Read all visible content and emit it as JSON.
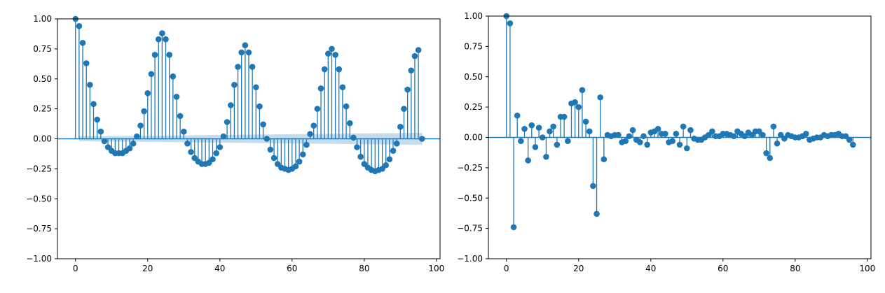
{
  "chart_data": [
    {
      "type": "stem",
      "title": "",
      "xlabel": "",
      "ylabel": "",
      "xlim": [
        -5,
        101
      ],
      "ylim": [
        -1.0,
        1.0
      ],
      "xticks": [
        0,
        20,
        40,
        60,
        80,
        100
      ],
      "yticks": [
        -1.0,
        -0.75,
        -0.5,
        -0.25,
        0.0,
        0.25,
        0.5,
        0.75,
        1.0
      ],
      "ytick_labels": [
        "−1.00",
        "−0.75",
        "−0.50",
        "−0.25",
        "0.00",
        "0.25",
        "0.50",
        "0.75",
        "1.00"
      ],
      "grid": false,
      "color": "#1f77b4",
      "confidence_band": {
        "color": "#1f77b4",
        "opacity": 0.25,
        "lower_start": -0.02,
        "lower_end": -0.05,
        "upper_start": 0.02,
        "upper_end": 0.05
      },
      "x": [
        0,
        1,
        2,
        3,
        4,
        5,
        6,
        7,
        8,
        9,
        10,
        11,
        12,
        13,
        14,
        15,
        16,
        17,
        18,
        19,
        20,
        21,
        22,
        23,
        24,
        25,
        26,
        27,
        28,
        29,
        30,
        31,
        32,
        33,
        34,
        35,
        36,
        37,
        38,
        39,
        40,
        41,
        42,
        43,
        44,
        45,
        46,
        47,
        48,
        49,
        50,
        51,
        52,
        53,
        54,
        55,
        56,
        57,
        58,
        59,
        60,
        61,
        62,
        63,
        64,
        65,
        66,
        67,
        68,
        69,
        70,
        71,
        72,
        73,
        74,
        75,
        76,
        77,
        78,
        79,
        80,
        81,
        82,
        83,
        84,
        85,
        86,
        87,
        88,
        89,
        90,
        91,
        92,
        93,
        94,
        95,
        96
      ],
      "values": [
        1.0,
        0.94,
        0.8,
        0.63,
        0.45,
        0.29,
        0.16,
        0.06,
        -0.02,
        -0.07,
        -0.1,
        -0.12,
        -0.12,
        -0.12,
        -0.1,
        -0.08,
        -0.04,
        0.02,
        0.11,
        0.23,
        0.38,
        0.54,
        0.7,
        0.83,
        0.88,
        0.83,
        0.7,
        0.52,
        0.35,
        0.19,
        0.06,
        -0.04,
        -0.11,
        -0.16,
        -0.19,
        -0.21,
        -0.21,
        -0.2,
        -0.17,
        -0.12,
        -0.07,
        0.02,
        0.14,
        0.28,
        0.45,
        0.6,
        0.72,
        0.78,
        0.72,
        0.6,
        0.43,
        0.27,
        0.12,
        0.0,
        -0.09,
        -0.16,
        -0.21,
        -0.24,
        -0.25,
        -0.26,
        -0.25,
        -0.23,
        -0.19,
        -0.13,
        -0.05,
        0.04,
        0.11,
        0.25,
        0.42,
        0.58,
        0.71,
        0.75,
        0.7,
        0.58,
        0.43,
        0.27,
        0.13,
        0.01,
        -0.07,
        -0.15,
        -0.21,
        -0.24,
        -0.26,
        -0.27,
        -0.26,
        -0.25,
        -0.22,
        -0.17,
        -0.1,
        -0.04,
        0.1,
        0.25,
        0.41,
        0.57,
        0.69,
        0.74,
        0.0
      ]
    },
    {
      "type": "stem",
      "title": "",
      "xlabel": "",
      "ylabel": "",
      "xlim": [
        -5,
        101
      ],
      "ylim": [
        -1.0,
        1.0
      ],
      "xticks": [
        0,
        20,
        40,
        60,
        80,
        100
      ],
      "yticks": [
        -1.0,
        -0.75,
        -0.5,
        -0.25,
        0.0,
        0.25,
        0.5,
        0.75,
        1.0
      ],
      "ytick_labels": [
        "−1.00",
        "−0.75",
        "−0.50",
        "−0.25",
        "0.00",
        "0.25",
        "0.50",
        "0.75",
        "1.00"
      ],
      "grid": false,
      "color": "#1f77b4",
      "x": [
        0,
        1,
        2,
        3,
        4,
        5,
        6,
        7,
        8,
        9,
        10,
        11,
        12,
        13,
        14,
        15,
        16,
        17,
        18,
        19,
        20,
        21,
        22,
        23,
        24,
        25,
        26,
        27,
        28,
        29,
        30,
        31,
        32,
        33,
        34,
        35,
        36,
        37,
        38,
        39,
        40,
        41,
        42,
        43,
        44,
        45,
        46,
        47,
        48,
        49,
        50,
        51,
        52,
        53,
        54,
        55,
        56,
        57,
        58,
        59,
        60,
        61,
        62,
        63,
        64,
        65,
        66,
        67,
        68,
        69,
        70,
        71,
        72,
        73,
        74,
        75,
        76,
        77,
        78,
        79,
        80,
        81,
        82,
        83,
        84,
        85,
        86,
        87,
        88,
        89,
        90,
        91,
        92,
        93,
        94,
        95,
        96
      ],
      "values": [
        1.0,
        0.94,
        -0.74,
        0.18,
        -0.03,
        0.07,
        -0.19,
        0.1,
        -0.08,
        0.08,
        0.0,
        -0.16,
        0.05,
        0.09,
        -0.06,
        0.17,
        0.17,
        -0.03,
        0.28,
        0.29,
        0.25,
        0.39,
        0.13,
        0.05,
        -0.4,
        -0.63,
        0.33,
        -0.18,
        0.02,
        0.01,
        0.02,
        0.02,
        -0.04,
        -0.03,
        0.01,
        0.06,
        -0.02,
        -0.04,
        0.01,
        -0.06,
        0.04,
        0.05,
        0.07,
        0.03,
        0.03,
        -0.04,
        -0.03,
        0.03,
        -0.06,
        0.09,
        -0.09,
        0.06,
        -0.01,
        -0.02,
        -0.02,
        0.0,
        0.02,
        0.05,
        0.01,
        0.01,
        0.03,
        0.03,
        0.02,
        0.01,
        0.05,
        0.03,
        0.01,
        0.04,
        0.02,
        0.05,
        0.05,
        0.02,
        -0.13,
        -0.17,
        0.09,
        -0.05,
        0.02,
        -0.01,
        0.02,
        0.01,
        0.0,
        0.0,
        0.01,
        0.03,
        -0.02,
        -0.01,
        0.0,
        0.0,
        0.02,
        0.01,
        0.02,
        0.02,
        0.03,
        0.01,
        0.01,
        -0.02,
        -0.06
      ]
    }
  ]
}
